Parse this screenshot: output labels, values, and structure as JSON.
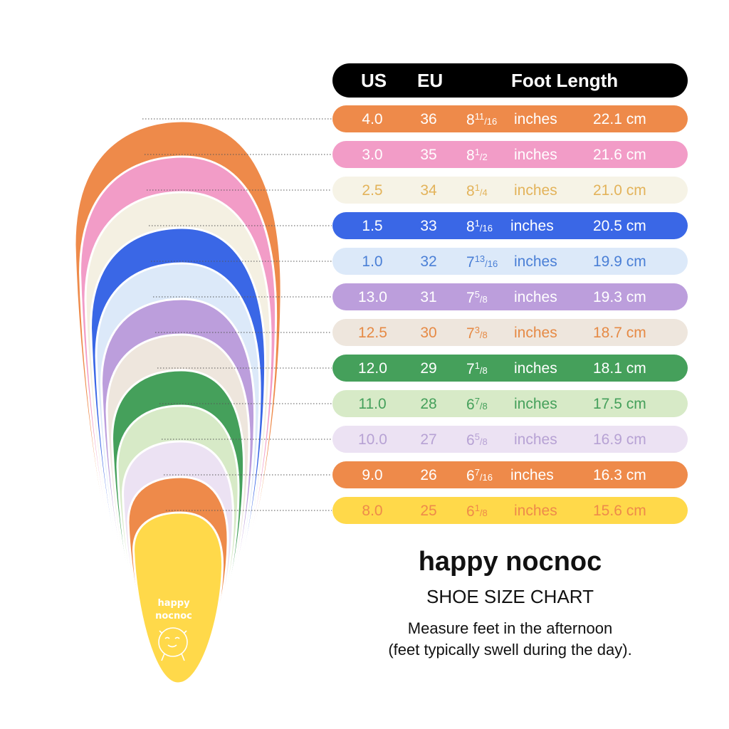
{
  "header": {
    "us": "US",
    "eu": "EU",
    "length": "Foot Length"
  },
  "rows": [
    {
      "us": "4.0",
      "eu": "36",
      "whole": "8",
      "num": "11",
      "den": "16",
      "unit": "inches",
      "cm": "22.1 cm",
      "bg": "#EE8A4A",
      "fg": "#ffffff"
    },
    {
      "us": "3.0",
      "eu": "35",
      "whole": "8",
      "num": "1",
      "den": "2",
      "unit": "inches",
      "cm": "21.6 cm",
      "bg": "#F29CC7",
      "fg": "#ffffff"
    },
    {
      "us": "2.5",
      "eu": "34",
      "whole": "8",
      "num": "1",
      "den": "4",
      "unit": "inches",
      "cm": "21.0 cm",
      "bg": "#F6F3E6",
      "fg": "#E3B35A"
    },
    {
      "us": "1.5",
      "eu": "33",
      "whole": "8",
      "num": "1",
      "den": "16",
      "unit": "inches",
      "cm": "20.5 cm",
      "bg": "#3A67E6",
      "fg": "#ffffff"
    },
    {
      "us": "1.0",
      "eu": "32",
      "whole": "7",
      "num": "13",
      "den": "16",
      "unit": "inches",
      "cm": "19.9 cm",
      "bg": "#DCE9F9",
      "fg": "#4A7FD6"
    },
    {
      "us": "13.0",
      "eu": "31",
      "whole": "7",
      "num": "5",
      "den": "8",
      "unit": "inches",
      "cm": "19.3 cm",
      "bg": "#BC9EDC",
      "fg": "#ffffff"
    },
    {
      "us": "12.5",
      "eu": "30",
      "whole": "7",
      "num": "3",
      "den": "8",
      "unit": "inches",
      "cm": "18.7 cm",
      "bg": "#EEE6DD",
      "fg": "#E68A45"
    },
    {
      "us": "12.0",
      "eu": "29",
      "whole": "7",
      "num": "1",
      "den": "8",
      "unit": "inches",
      "cm": "18.1 cm",
      "bg": "#45A05B",
      "fg": "#ffffff"
    },
    {
      "us": "11.0",
      "eu": "28",
      "whole": "6",
      "num": "7",
      "den": "8",
      "unit": "inches",
      "cm": "17.5 cm",
      "bg": "#D7EAC7",
      "fg": "#45A05B"
    },
    {
      "us": "10.0",
      "eu": "27",
      "whole": "6",
      "num": "5",
      "den": "8",
      "unit": "inches",
      "cm": "16.9 cm",
      "bg": "#ECE2F3",
      "fg": "#B7A2D4"
    },
    {
      "us": "9.0",
      "eu": "26",
      "whole": "6",
      "num": "7",
      "den": "16",
      "unit": "inches",
      "cm": "16.3 cm",
      "bg": "#EE8A4A",
      "fg": "#ffffff"
    },
    {
      "us": "8.0",
      "eu": "25",
      "whole": "6",
      "num": "1",
      "den": "8",
      "unit": "inches",
      "cm": "15.6 cm",
      "bg": "#FFD94A",
      "fg": "#EE8A4A"
    }
  ],
  "brand": {
    "title": "happy nocnoc",
    "subtitle": "SHOE SIZE CHART",
    "note_line1": "Measure feet in the afternoon",
    "note_line2": "(feet typically swell during the day).",
    "insole_logo_line1": "happy",
    "insole_logo_line2": "nocnoc"
  }
}
